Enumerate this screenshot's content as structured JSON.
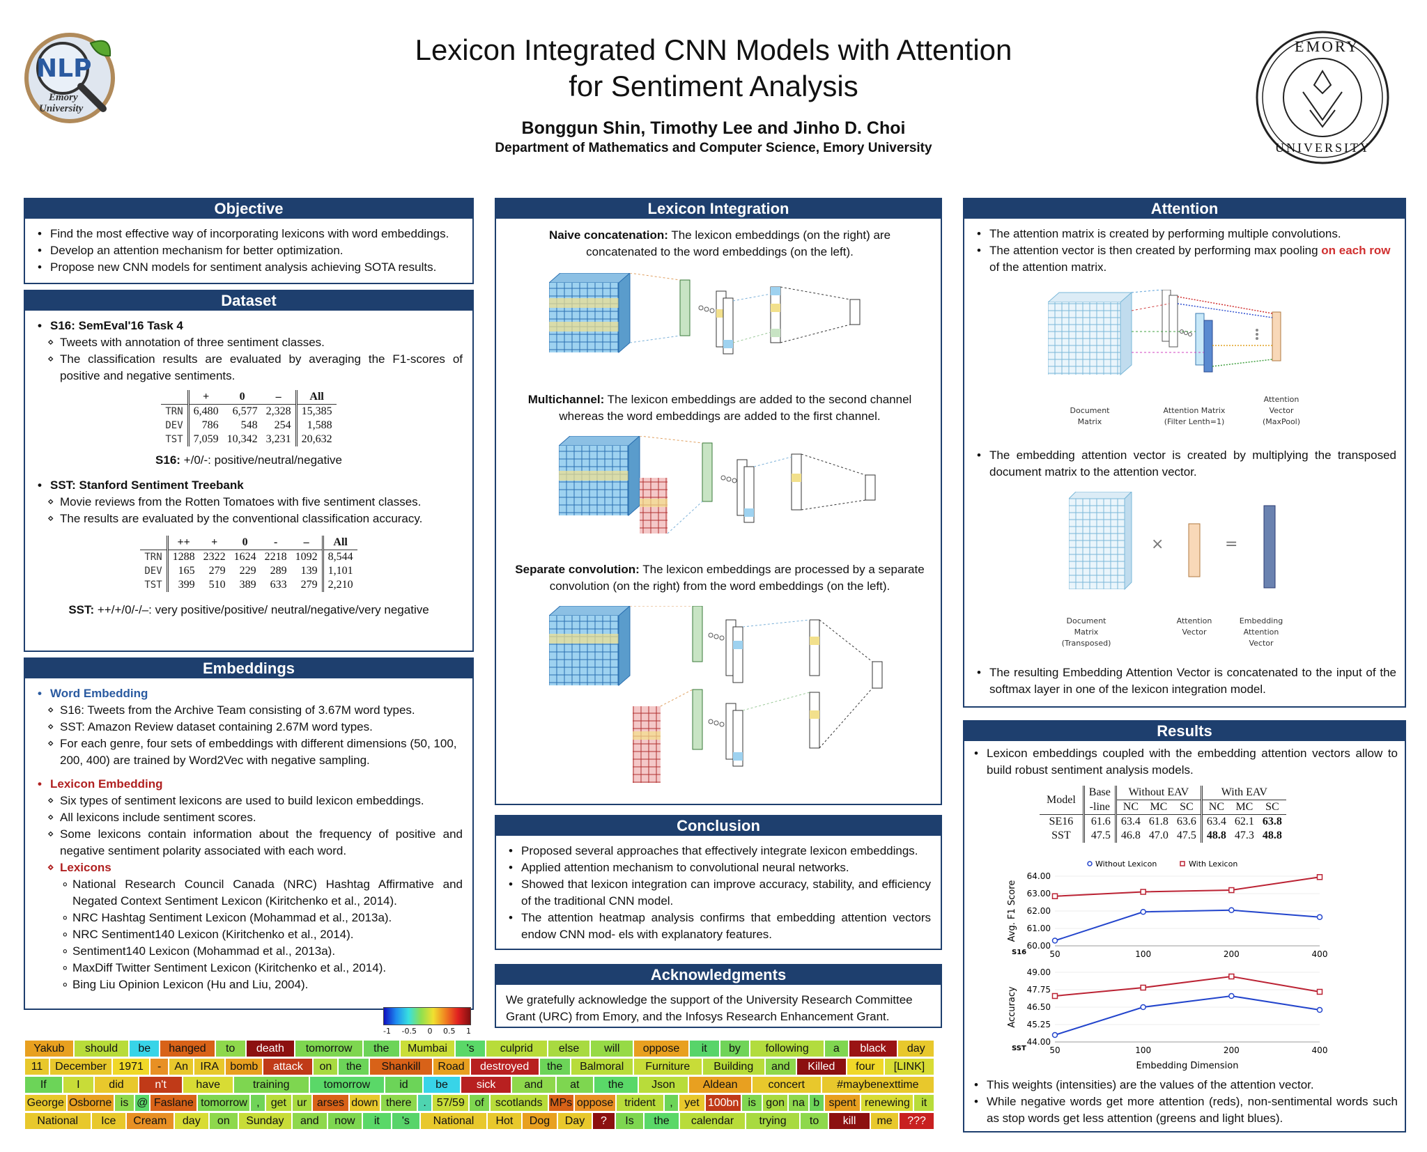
{
  "title_line1": "Lexicon Integrated CNN Models with Attention",
  "title_line2": "for Sentiment Analysis",
  "authors": "Bonggun Shin, Timothy Lee and Jinho D. Choi",
  "affiliation": "Department of Mathematics and Computer Science, Emory University",
  "logo_left": {
    "text": "NLP",
    "sub1": "Emory",
    "sub2": "University"
  },
  "logo_right": {
    "top": "EMORY",
    "bottom": "UNIVERSITY"
  },
  "objective": {
    "title": "Objective",
    "items": [
      "Find the most effective way of incorporating lexicons with word embeddings.",
      "Develop an attention mechanism for better optimization.",
      "Propose new CNN models for sentiment analysis achieving SOTA results."
    ]
  },
  "dataset": {
    "title": "Dataset",
    "s16_head": "S16: SemEval'16 Task 4",
    "s16_items": [
      "Tweets with annotation of three sentiment classes.",
      "The classification results are evaluated by averaging the F1-scores of positive and negative sentiments."
    ],
    "s16_table": {
      "headers": [
        "+",
        "0",
        "–",
        "All"
      ],
      "rows": [
        {
          "label": "TRN",
          "values": [
            "6,480",
            "6,577",
            "2,328",
            "15,385"
          ]
        },
        {
          "label": "DEV",
          "values": [
            "786",
            "548",
            "254",
            "1,588"
          ]
        },
        {
          "label": "TST",
          "values": [
            "7,059",
            "10,342",
            "3,231",
            "20,632"
          ]
        }
      ]
    },
    "s16_caption_b": "S16:",
    "s16_caption": " +/0/-: positive/neutral/negative",
    "sst_head": "SST: Stanford Sentiment Treebank",
    "sst_items": [
      "Movie reviews from the Rotten Tomatoes with five sentiment classes.",
      "The results are evaluated by the conventional classification accuracy."
    ],
    "sst_table": {
      "headers": [
        "++",
        "+",
        "0",
        "-",
        "–",
        "All"
      ],
      "rows": [
        {
          "label": "TRN",
          "values": [
            "1288",
            "2322",
            "1624",
            "2218",
            "1092",
            "8,544"
          ]
        },
        {
          "label": "DEV",
          "values": [
            "165",
            "279",
            "229",
            "289",
            "139",
            "1,101"
          ]
        },
        {
          "label": "TST",
          "values": [
            "399",
            "510",
            "389",
            "633",
            "279",
            "2,210"
          ]
        }
      ]
    },
    "sst_caption_b": "SST:",
    "sst_caption": " ++/+/0/-/–: very positive/positive/ neutral/negative/very negative"
  },
  "embeddings": {
    "title": "Embeddings",
    "word_head": "Word Embedding",
    "word_items": [
      "S16: Tweets from the Archive Team consisting of 3.67M word types.",
      "SST: Amazon Review dataset containing 2.67M word types.",
      "For each genre, four sets of embeddings with different dimensions (50, 100, 200, 400) are trained by Word2Vec with negative sampling."
    ],
    "lex_head": "Lexicon Embedding",
    "lex_items": [
      "Six types of sentiment lexicons are used to build lexicon embeddings.",
      "All lexicons include sentiment scores.",
      "Some lexicons contain information about the frequency of positive and negative sentiment polarity associated with each word."
    ],
    "lexicons_head": "Lexicons",
    "lexicons": [
      "National Research Council Canada (NRC) Hashtag Affirmative and Negated Context Sentiment Lexicon (Kiritchenko et al., 2014).",
      "NRC Hashtag Sentiment Lexicon (Mohammad et al., 2013a).",
      "NRC Sentiment140 Lexicon (Kiritchenko et al., 2014).",
      "Sentiment140 Lexicon (Mohammad et al., 2013a).",
      "MaxDiff Twitter Sentiment Lexicon (Kiritchenko et al., 2014).",
      "Bing Liu Opinion Lexicon (Hu and Liu, 2004)."
    ]
  },
  "lexicon_integration": {
    "title": "Lexicon Integration",
    "naive_b": "Naive concatenation:",
    "naive": " The lexicon embeddings (on the right) are concatenated to the word embeddings (on the left).",
    "multi_b": "Multichannel:",
    "multi": " The lexicon embeddings are added to the second channel whereas the word embeddings are added to the first channel.",
    "sep_b": "Separate convolution:",
    "sep": " The lexicon embeddings are processed by a separate convolution (on the right) from the word embeddings (on the left)."
  },
  "conclusion": {
    "title": "Conclusion",
    "items": [
      "Proposed several approaches that effectively integrate lexicon embeddings.",
      "Applied attention mechanism to convolutional neural networks.",
      "Showed that lexicon integration can improve accuracy, stability, and efficiency of the traditional CNN model.",
      "The attention heatmap analysis confirms that embedding attention vectors endow CNN mod- els with explanatory features."
    ]
  },
  "acknowledgments": {
    "title": "Acknowledgments",
    "text": "We gratefully acknowledge the support of the University Research Committee Grant (URC) from Emory, and the Infosys Research Enhancement Grant."
  },
  "attention": {
    "title": "Attention",
    "item1": "The attention matrix is created by performing multiple convolutions.",
    "item2a": "The attention vector is then created by performing max pooling ",
    "item2_red": "on each row",
    "item2b": " of the attention matrix.",
    "fig1_labels": {
      "doc1": "Document",
      "doc2": "Matrix",
      "am1": "Attention Matrix",
      "am2": "(Filter Lenth=1)",
      "av1": "Attention",
      "av2": "Vector",
      "av3": "(MaxPool)"
    },
    "item3": "The embedding attention vector is created by multiplying the transposed document matrix to the attention vector.",
    "fig2_labels": {
      "d1": "Document",
      "d2": "Matrix",
      "d3": "(Transposed)",
      "a1": "Attention",
      "a2": "Vector",
      "e1": "Embedding",
      "e2": "Attention",
      "e3": "Vector"
    },
    "item4": "The resulting Embedding Attention Vector is concatenated to the input of the softmax layer in one of the lexicon integration model."
  },
  "results": {
    "title": "Results",
    "item1": "Lexicon embeddings coupled with the embedding attention vectors allow to build robust sentiment analysis models.",
    "table": {
      "model": "Model",
      "base1": "Base",
      "base2": "-line",
      "without": "Without EAV",
      "with": "With EAV",
      "sub": [
        "NC",
        "MC",
        "SC",
        "NC",
        "MC",
        "SC"
      ],
      "rows": [
        {
          "label": "SE16",
          "values": [
            "61.6",
            "63.4",
            "61.8",
            "63.6",
            "63.4",
            "62.1",
            "63.8"
          ],
          "bold": [
            6
          ]
        },
        {
          "label": "SST",
          "values": [
            "47.5",
            "46.8",
            "47.0",
            "47.5",
            "48.8",
            "47.3",
            "48.8"
          ],
          "bold": [
            4,
            6
          ]
        }
      ]
    },
    "item2": "This weights (intensities) are the values of the attention vector.",
    "item3": "While negative words get more attention (reds), non-sentimental words such as stop words get less attention (greens and light blues)."
  },
  "chart_data": [
    {
      "type": "line",
      "title": "",
      "legend": [
        "Without Lexicon",
        "With Lexicon"
      ],
      "legend_placement": "top",
      "ylabel": "Avg. F1 Score",
      "corner_label": "S16",
      "x": [
        50,
        100,
        200,
        400
      ],
      "ylim": [
        60,
        64
      ],
      "yticks": [
        "60.00",
        "61.00",
        "62.00",
        "63.00",
        "64.00"
      ],
      "series": [
        {
          "name": "Without Lexicon",
          "color": "#2244cc",
          "values": [
            60.3,
            61.95,
            62.05,
            61.65
          ]
        },
        {
          "name": "With Lexicon",
          "color": "#bb2233",
          "values": [
            62.85,
            63.1,
            63.2,
            63.95
          ]
        }
      ]
    },
    {
      "type": "line",
      "title": "",
      "xlabel": "Embedding Dimension",
      "ylabel": "Accuracy",
      "corner_label": "SST",
      "x": [
        50,
        100,
        200,
        400
      ],
      "ylim": [
        44,
        49
      ],
      "yticks": [
        "44.00",
        "45.25",
        "46.50",
        "47.75",
        "49.00"
      ],
      "series": [
        {
          "name": "Without Lexicon",
          "color": "#2244cc",
          "values": [
            44.5,
            46.5,
            47.3,
            46.3
          ]
        },
        {
          "name": "With Lexicon",
          "color": "#bb2233",
          "values": [
            47.3,
            47.9,
            48.7,
            47.6
          ]
        }
      ]
    }
  ],
  "colorbar": {
    "ticks": [
      "-1",
      "-0.5",
      "0",
      "0.5",
      "1"
    ]
  },
  "heatmap": {
    "rows": [
      [
        [
          "Yakub",
          "#e8a020"
        ],
        [
          "should",
          "#b8dc3a"
        ],
        [
          "be",
          "#38d4e8"
        ],
        [
          "hanged",
          "#d86218"
        ],
        [
          "to",
          "#8ed84c"
        ],
        [
          "death",
          "#8c1010"
        ],
        [
          "tomorrow",
          "#7ed650"
        ],
        [
          "the",
          "#6cd458"
        ],
        [
          "Mumbai",
          "#cade38"
        ],
        [
          "'s",
          "#5ad868"
        ],
        [
          "culprid",
          "#b8dc3a"
        ],
        [
          "else",
          "#a8da40"
        ],
        [
          "will",
          "#96da46"
        ],
        [
          "oppose",
          "#e8a020"
        ],
        [
          "it",
          "#58d46a"
        ],
        [
          "by",
          "#70d458"
        ],
        [
          "following",
          "#b2dc3e"
        ],
        [
          "a",
          "#80d650"
        ],
        [
          "black",
          "#9a1414"
        ],
        [
          "day",
          "#e8c82c"
        ]
      ],
      [
        [
          "11",
          "#e8c82c"
        ],
        [
          "December",
          "#e8c82c"
        ],
        [
          "1971",
          "#f0d828"
        ],
        [
          "-",
          "#e89024"
        ],
        [
          "An",
          "#e8c82c"
        ],
        [
          "IRA",
          "#e8c82c"
        ],
        [
          "bomb",
          "#e8a020"
        ],
        [
          "attack",
          "#c03a18"
        ],
        [
          "on",
          "#a8da40"
        ],
        [
          "the",
          "#6cd458"
        ],
        [
          "Shankill",
          "#d86218"
        ],
        [
          "Road",
          "#e8a020"
        ],
        [
          "destroyed",
          "#b82020"
        ],
        [
          "the",
          "#6cd458"
        ],
        [
          "Balmoral",
          "#b8dc3a"
        ],
        [
          "Furniture",
          "#c8dc38"
        ],
        [
          "Building",
          "#b8dc3a"
        ],
        [
          "and",
          "#8ed84c"
        ],
        [
          "Killed",
          "#8c1010"
        ],
        [
          "four",
          "#f0d828"
        ],
        [
          "[LINK]",
          "#d8dc34"
        ]
      ],
      [
        [
          "If",
          "#6cd458"
        ],
        [
          "I",
          "#c8dc38"
        ],
        [
          "did",
          "#e8c82c"
        ],
        [
          "n't",
          "#c03a18"
        ],
        [
          "have",
          "#d8dc34"
        ],
        [
          "training",
          "#7ed650"
        ],
        [
          "tomorrow",
          "#5ad868"
        ],
        [
          "id",
          "#6cd458"
        ],
        [
          "be",
          "#38d4e8"
        ],
        [
          "sick",
          "#b82020"
        ],
        [
          "and",
          "#8ed84c"
        ],
        [
          "at",
          "#7ed650"
        ],
        [
          "the",
          "#5ad868"
        ],
        [
          "Json",
          "#b8dc3a"
        ],
        [
          "Aldean",
          "#e8a020"
        ],
        [
          "concert",
          "#e8c82c"
        ],
        [
          "#maybenexttime",
          "#e8c82c"
        ]
      ],
      [
        [
          "George",
          "#e8c82c"
        ],
        [
          "Osborne",
          "#e8a020"
        ],
        [
          "is",
          "#8ed84c"
        ],
        [
          "@",
          "#5ad868"
        ],
        [
          "Faslane",
          "#d86218"
        ],
        [
          "tomorrow",
          "#7ed650"
        ],
        [
          ",",
          "#70d458"
        ],
        [
          "get",
          "#b8dc3a"
        ],
        [
          "ur",
          "#a8da40"
        ],
        [
          "arses",
          "#d86218"
        ],
        [
          "down",
          "#e8c82c"
        ],
        [
          "there",
          "#8ed84c"
        ],
        [
          ".",
          "#4ed4b0"
        ],
        [
          "57/59",
          "#c8dc38"
        ],
        [
          "of",
          "#7ed650"
        ],
        [
          "scotlands",
          "#b8dc3a"
        ],
        [
          "MPs",
          "#d86218"
        ],
        [
          "oppose",
          "#e89024"
        ],
        [
          "trident",
          "#b8dc3a"
        ],
        [
          ",",
          "#6cd458"
        ],
        [
          "yet",
          "#e8c82c"
        ],
        [
          "100bn",
          "#c03a18"
        ],
        [
          "is",
          "#80d650"
        ],
        [
          "gon",
          "#a8da40"
        ],
        [
          "na",
          "#8ed84c"
        ],
        [
          "b",
          "#6cd458"
        ],
        [
          "spent",
          "#e8a020"
        ],
        [
          "renewing",
          "#d8dc34"
        ],
        [
          "it",
          "#b8dc3a"
        ]
      ],
      [
        [
          "National",
          "#e8c82c"
        ],
        [
          "Ice",
          "#e8c82c"
        ],
        [
          "Cream",
          "#e89024"
        ],
        [
          "day",
          "#d8dc34"
        ],
        [
          "on",
          "#8ed84c"
        ],
        [
          "Sunday",
          "#c8dc38"
        ],
        [
          "and",
          "#8ed84c"
        ],
        [
          "now",
          "#7ed650"
        ],
        [
          "it",
          "#5ad868"
        ],
        [
          "'s",
          "#58d46a"
        ],
        [
          "National",
          "#e8c82c"
        ],
        [
          "Hot",
          "#e8c82c"
        ],
        [
          "Dog",
          "#e8a020"
        ],
        [
          "Day",
          "#e8c82c"
        ],
        [
          "?",
          "#8c1010"
        ],
        [
          "Is",
          "#7ed650"
        ],
        [
          "the",
          "#5ad868"
        ],
        [
          "calendar",
          "#b8dc3a"
        ],
        [
          "trying",
          "#a8da40"
        ],
        [
          "to",
          "#8ed84c"
        ],
        [
          "kill",
          "#8c1010"
        ],
        [
          "me",
          "#e8c82c"
        ],
        [
          "???",
          "#c82020"
        ]
      ]
    ]
  }
}
